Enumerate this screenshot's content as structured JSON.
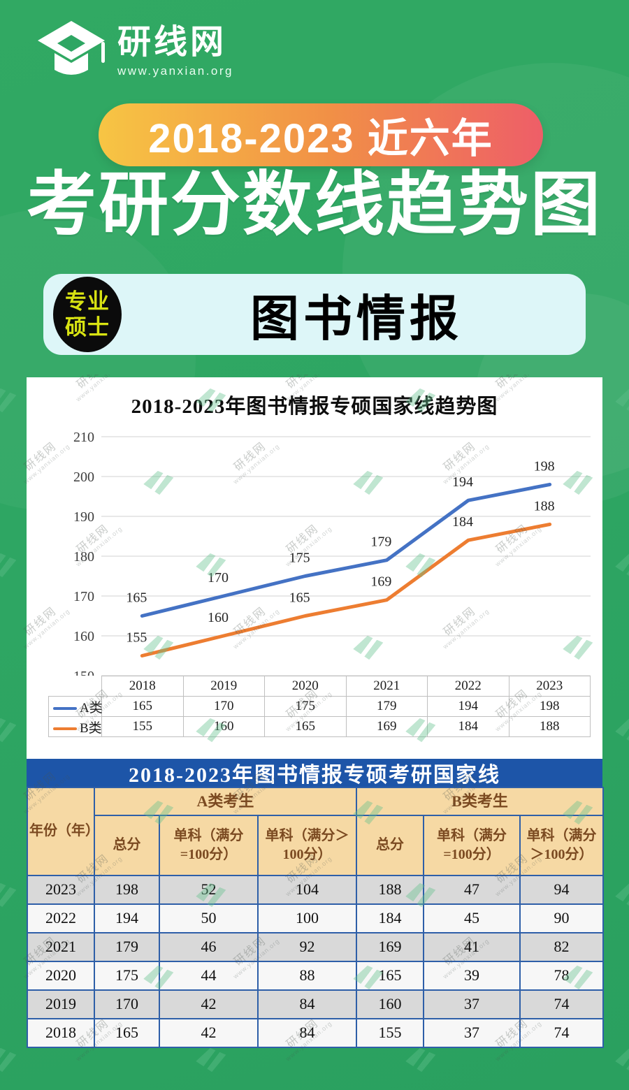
{
  "brand": {
    "name": "研线网",
    "url": "www.yanxian.org"
  },
  "header": {
    "badge_label": "2018-2023 近六年",
    "title": "考研分数线趋势图"
  },
  "subject": {
    "badge_line1": "专业",
    "badge_line2": "硕士",
    "name": "图书情报"
  },
  "chart_data": {
    "type": "line",
    "title": "2018-2023年图书情报专硕国家线趋势图",
    "categories": [
      "2018",
      "2019",
      "2020",
      "2021",
      "2022",
      "2023"
    ],
    "series": [
      {
        "name": "A类",
        "color": "#4472C4",
        "values": [
          165,
          170,
          175,
          179,
          194,
          198
        ]
      },
      {
        "name": "B类",
        "color": "#ED7D31",
        "values": [
          155,
          160,
          165,
          169,
          184,
          188
        ]
      }
    ],
    "ylim": [
      150,
      210
    ],
    "ytick_step": 10,
    "grid": true,
    "legend_position": "bottom-table",
    "data_labels": true
  },
  "table": {
    "title": "2018-2023年图书情报专硕考研国家线",
    "year_header": "年份（年）",
    "group_headers": [
      "A类考生",
      "B类考生"
    ],
    "sub_headers": [
      "总分",
      "单科（满分=100分）",
      "单科（满分＞100分）",
      "总分",
      "单科（满分=100分）",
      "单科（满分＞100分）"
    ],
    "rows": [
      {
        "year": "2023",
        "values": [
          198,
          52,
          104,
          188,
          47,
          94
        ]
      },
      {
        "year": "2022",
        "values": [
          194,
          50,
          100,
          184,
          45,
          90
        ]
      },
      {
        "year": "2021",
        "values": [
          179,
          46,
          92,
          169,
          41,
          82
        ]
      },
      {
        "year": "2020",
        "values": [
          175,
          44,
          88,
          165,
          39,
          78
        ]
      },
      {
        "year": "2019",
        "values": [
          170,
          42,
          84,
          160,
          37,
          74
        ]
      },
      {
        "year": "2018",
        "values": [
          165,
          42,
          84,
          155,
          37,
          74
        ]
      }
    ]
  },
  "watermark": {
    "text": "研线网",
    "subtext": "www.yanxian.org"
  },
  "colors": {
    "background": "#2EA663",
    "badge_gradient_start": "#F7C544",
    "badge_gradient_end": "#EE5E68",
    "subject_pill_bg": "#DDF6F8",
    "degree_badge_bg": "#0B0B0B",
    "degree_badge_text": "#D8E312",
    "band_blue": "#1D55A8",
    "table_header_bg": "#F6D9A4",
    "table_header_text": "#7B4A21",
    "table_border": "#2E5FA8",
    "row_gray": "#D9D9D9",
    "row_white": "#F7F7F7",
    "gridline": "#D9D9D9",
    "series_a": "#4472C4",
    "series_b": "#ED7D31"
  }
}
